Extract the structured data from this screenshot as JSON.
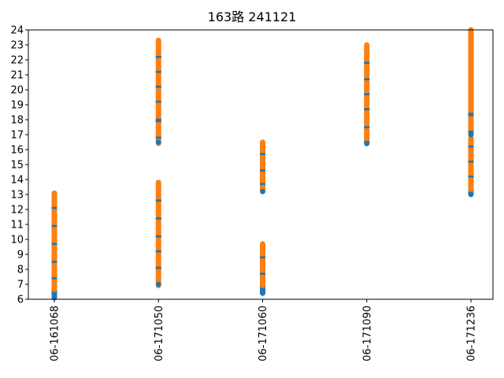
{
  "chart_data": {
    "type": "scatter",
    "title": "163路  241121",
    "xlabel": "",
    "ylabel": "",
    "categories": [
      "06-161068",
      "06-171050",
      "06-171060",
      "06-171090",
      "06-171236"
    ],
    "ylim": [
      6,
      24
    ],
    "yticks": [
      6,
      7,
      8,
      9,
      10,
      11,
      12,
      13,
      14,
      15,
      16,
      17,
      18,
      19,
      20,
      21,
      22,
      23,
      24
    ],
    "grid": false,
    "legend": "none",
    "colors": {
      "series_blue": "#1f77b4",
      "series_orange": "#ff7f0e",
      "axes": "#000000",
      "background": "#ffffff"
    },
    "series": [
      {
        "color_key": "series_blue",
        "ranges": [
          {
            "category": "06-161068",
            "min": 6.1,
            "max": 13.0,
            "marks": [
              6.2,
              6.4,
              7.4,
              8.5,
              9.7,
              10.9,
              12.1
            ]
          },
          {
            "category": "06-171050",
            "min": 7.0,
            "max": 13.8,
            "marks": [
              8.1,
              9.2,
              10.2,
              11.4,
              12.6
            ]
          },
          {
            "category": "06-171050",
            "min": 16.5,
            "max": 23.2,
            "marks": [
              16.8,
              17.9,
              18.0,
              19.2,
              20.2,
              21.2,
              22.2
            ]
          },
          {
            "category": "06-171060",
            "min": 6.4,
            "max": 9.6,
            "marks": [
              6.5,
              6.6,
              7.7,
              8.8
            ]
          },
          {
            "category": "06-171060",
            "min": 13.2,
            "max": 16.4,
            "marks": [
              13.7,
              14.6,
              15.7
            ]
          },
          {
            "category": "06-171090",
            "min": 16.4,
            "max": 22.9,
            "marks": [
              16.5,
              17.5,
              18.7,
              19.7,
              20.7,
              21.8
            ]
          },
          {
            "category": "06-171236",
            "min": 13.0,
            "max": 16.7,
            "marks": [
              13.1,
              14.2,
              15.2,
              16.2
            ]
          },
          {
            "category": "06-171236",
            "min": 17.0,
            "max": 24.0,
            "marks": [
              17.2,
              18.3,
              18.4
            ]
          }
        ]
      },
      {
        "color_key": "series_orange",
        "ranges": [
          {
            "category": "06-161068",
            "min": 6.6,
            "max": 13.1
          },
          {
            "category": "06-171050",
            "min": 6.9,
            "max": 13.8
          },
          {
            "category": "06-171050",
            "min": 16.4,
            "max": 23.3
          },
          {
            "category": "06-171060",
            "min": 6.9,
            "max": 9.7
          },
          {
            "category": "06-171060",
            "min": 13.2,
            "max": 16.5
          },
          {
            "category": "06-171090",
            "min": 16.6,
            "max": 23.0
          },
          {
            "category": "06-171236",
            "min": 13.3,
            "max": 16.8
          },
          {
            "category": "06-171236",
            "min": 17.3,
            "max": 24.0
          }
        ]
      }
    ]
  }
}
